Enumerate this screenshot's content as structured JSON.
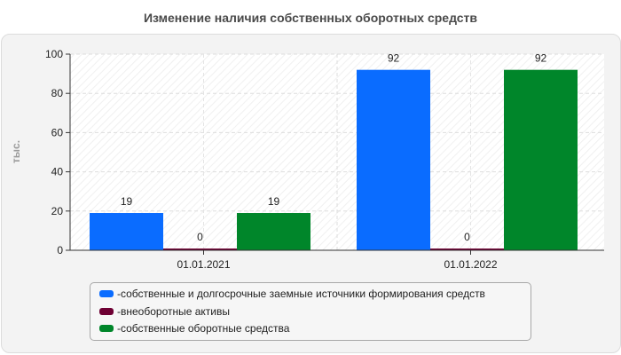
{
  "chart_data": {
    "type": "bar",
    "title": "Изменение наличия собственных оборотных средств",
    "ylabel": "тыс.",
    "xlabel": "",
    "categories": [
      "01.01.2021",
      "01.01.2022"
    ],
    "ylim": [
      0,
      100
    ],
    "yticks": [
      0,
      20,
      40,
      60,
      80,
      100
    ],
    "grid": true,
    "legend_position": "bottom",
    "series": [
      {
        "name": "собственные и долгосрочные заемные источники формирования средств",
        "color": "#0a6cff",
        "values": [
          19,
          92
        ]
      },
      {
        "name": "внеоборотные активы",
        "color": "#6e0033",
        "values": [
          0,
          0
        ]
      },
      {
        "name": "собственные оборотные средства",
        "color": "#00862a",
        "values": [
          19,
          92
        ]
      }
    ]
  },
  "legend_prefix": "- "
}
